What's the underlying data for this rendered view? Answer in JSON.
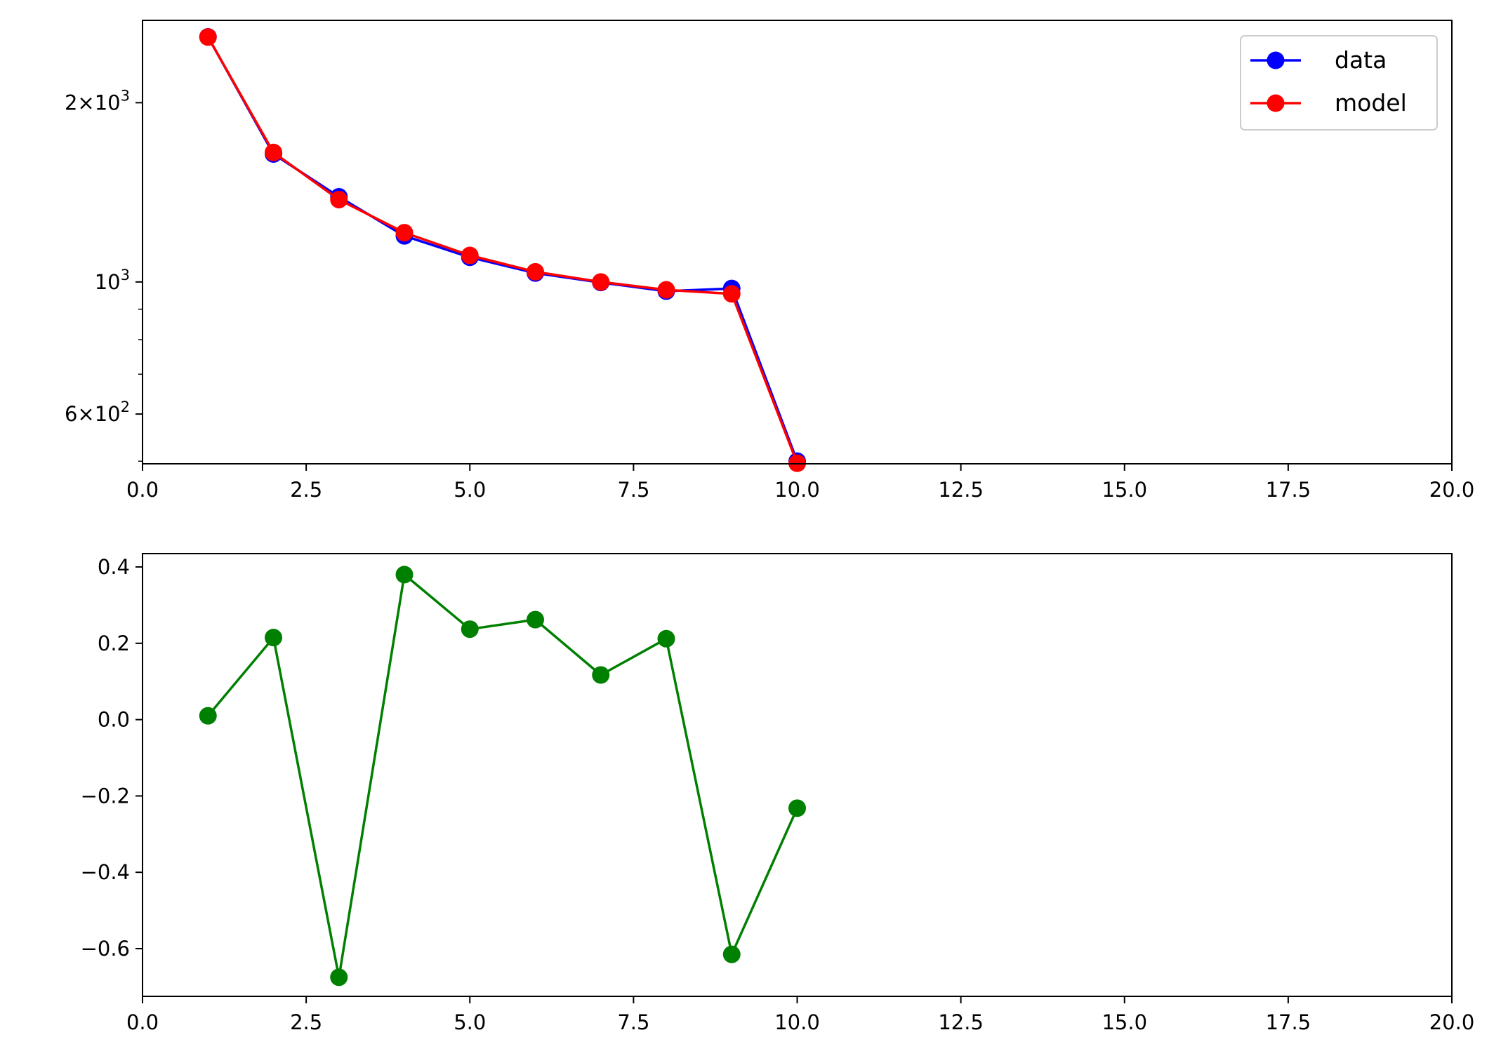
{
  "chart_data": [
    {
      "type": "line",
      "yscale": "log",
      "xlim": [
        0,
        20
      ],
      "ylim": [
        495,
        2750
      ],
      "grid": false,
      "legend_position": "top-right",
      "x_ticks": [
        "0.0",
        "2.5",
        "5.0",
        "7.5",
        "10.0",
        "12.5",
        "15.0",
        "17.5",
        "20.0"
      ],
      "y_ticks": [
        {
          "value": 600,
          "mantissa": "6",
          "exponent": "2"
        },
        {
          "value": 1000,
          "mantissa": "",
          "exponent": "3"
        },
        {
          "value": 2000,
          "mantissa": "2",
          "exponent": "3"
        }
      ],
      "series": [
        {
          "name": "data",
          "color": "#0000ff",
          "x": [
            1,
            2,
            3,
            4,
            5,
            6,
            7,
            8,
            9,
            10
          ],
          "y": [
            2580,
            1640,
            1390,
            1195,
            1100,
            1035,
            998,
            965,
            975,
            500
          ]
        },
        {
          "name": "model",
          "color": "#ff0000",
          "x": [
            1,
            2,
            3,
            4,
            5,
            6,
            7,
            8,
            9,
            10
          ],
          "y": [
            2578,
            1650,
            1375,
            1210,
            1108,
            1040,
            1000,
            970,
            955,
            496
          ]
        }
      ]
    },
    {
      "type": "line",
      "xlim": [
        0,
        20
      ],
      "ylim": [
        -0.725,
        0.435
      ],
      "grid": false,
      "x_ticks": [
        "0.0",
        "2.5",
        "5.0",
        "7.5",
        "10.0",
        "12.5",
        "15.0",
        "17.5",
        "20.0"
      ],
      "y_ticks": [
        {
          "value": 0.4,
          "label": "0.4"
        },
        {
          "value": 0.2,
          "label": "0.2"
        },
        {
          "value": 0.0,
          "label": "0.0"
        },
        {
          "value": -0.2,
          "label": "−0.2"
        },
        {
          "value": -0.4,
          "label": "−0.4"
        },
        {
          "value": -0.6,
          "label": "−0.6"
        }
      ],
      "series": [
        {
          "color": "#008000",
          "x": [
            1,
            2,
            3,
            4,
            5,
            6,
            7,
            8,
            9,
            10
          ],
          "y": [
            0.01,
            0.215,
            -0.675,
            0.38,
            0.237,
            0.262,
            0.117,
            0.212,
            -0.615,
            -0.232
          ]
        }
      ]
    }
  ]
}
